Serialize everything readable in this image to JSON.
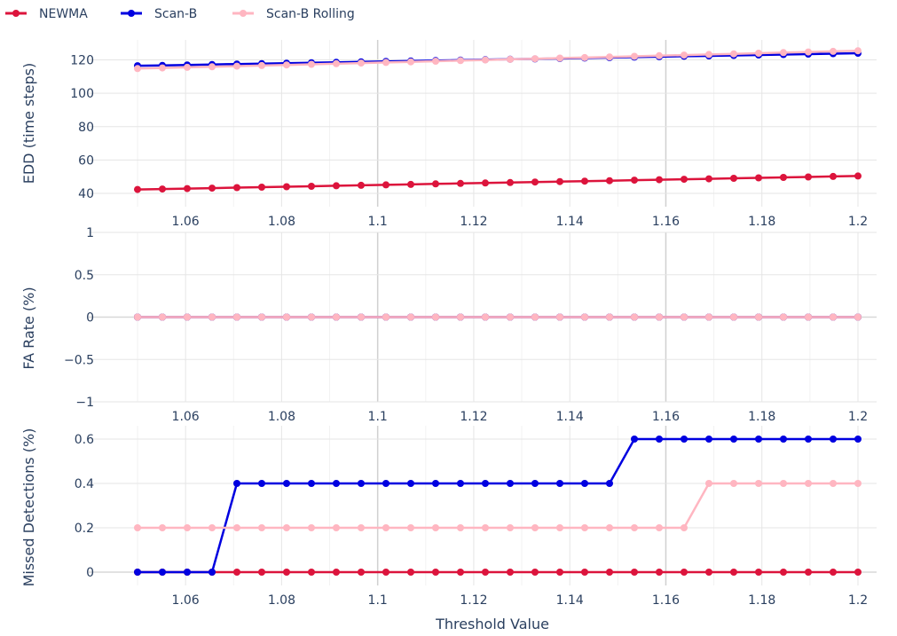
{
  "legend": {
    "items": [
      {
        "name": "NEWMA",
        "color": "#dc143c"
      },
      {
        "name": "Scan-B",
        "color": "#0000e0"
      },
      {
        "name": "Scan-B Rolling",
        "color": "#ffb6c1"
      }
    ]
  },
  "chart_data": [
    {
      "type": "line",
      "ylabel": "EDD (time steps)",
      "xlim": [
        1.05,
        1.2
      ],
      "ylim": [
        32,
        132
      ],
      "x_ticks": [
        "1.06",
        "1.08",
        "1.1",
        "1.12",
        "1.14",
        "1.16",
        "1.18",
        "1.2"
      ],
      "y_ticks": [
        "40",
        "60",
        "80",
        "100",
        "120"
      ],
      "x_tick_values": [
        1.06,
        1.08,
        1.1,
        1.12,
        1.14,
        1.16,
        1.18,
        1.2
      ],
      "y_tick_values": [
        40,
        60,
        80,
        100,
        120
      ],
      "series": [
        {
          "name": "NEWMA",
          "color": "#dc143c",
          "start": 42.3,
          "end": 50.4
        },
        {
          "name": "Scan-B",
          "color": "#0000e0",
          "start": 116.5,
          "end": 124.0
        },
        {
          "name": "Scan-B Rolling",
          "color": "#ffb6c1",
          "start": 114.8,
          "end": 125.5
        }
      ]
    },
    {
      "type": "line",
      "ylabel": "FA Rate (%)",
      "xlim": [
        1.05,
        1.2
      ],
      "ylim": [
        -1,
        1
      ],
      "x_ticks": [
        "1.06",
        "1.08",
        "1.1",
        "1.12",
        "1.14",
        "1.16",
        "1.18",
        "1.2"
      ],
      "y_ticks": [
        "−1",
        "−0.5",
        "0",
        "0.5",
        "1"
      ],
      "x_tick_values": [
        1.06,
        1.08,
        1.1,
        1.12,
        1.14,
        1.16,
        1.18,
        1.2
      ],
      "y_tick_values": [
        -1,
        -0.5,
        0,
        0.5,
        1
      ],
      "series": [
        {
          "name": "NEWMA",
          "color": "#dc143c",
          "constant": 0
        },
        {
          "name": "Scan-B",
          "color": "#0000e0",
          "constant": 0
        },
        {
          "name": "Scan-B Rolling",
          "color": "#ffb6c1",
          "constant": 0
        }
      ]
    },
    {
      "type": "line",
      "ylabel": "Missed Detections (%)",
      "xlabel": "Threshold Value",
      "xlim": [
        1.05,
        1.2
      ],
      "ylim": [
        -0.06,
        0.66
      ],
      "x_ticks": [
        "1.06",
        "1.08",
        "1.1",
        "1.12",
        "1.14",
        "1.16",
        "1.18",
        "1.2"
      ],
      "y_ticks": [
        "0",
        "0.2",
        "0.4",
        "0.6"
      ],
      "x_tick_values": [
        1.06,
        1.08,
        1.1,
        1.12,
        1.14,
        1.16,
        1.18,
        1.2
      ],
      "y_tick_values": [
        0,
        0.2,
        0.4,
        0.6
      ],
      "series": [
        {
          "name": "NEWMA",
          "color": "#dc143c",
          "steps": [
            [
              1.05,
              0
            ]
          ]
        },
        {
          "name": "Scan-B",
          "color": "#0000e0",
          "steps": [
            [
              1.05,
              0
            ],
            [
              1.07,
              0.4
            ],
            [
              1.15,
              0.6
            ]
          ]
        },
        {
          "name": "Scan-B Rolling",
          "color": "#ffb6c1",
          "steps": [
            [
              1.05,
              0.2
            ],
            [
              1.165,
              0.4
            ]
          ]
        }
      ]
    }
  ]
}
